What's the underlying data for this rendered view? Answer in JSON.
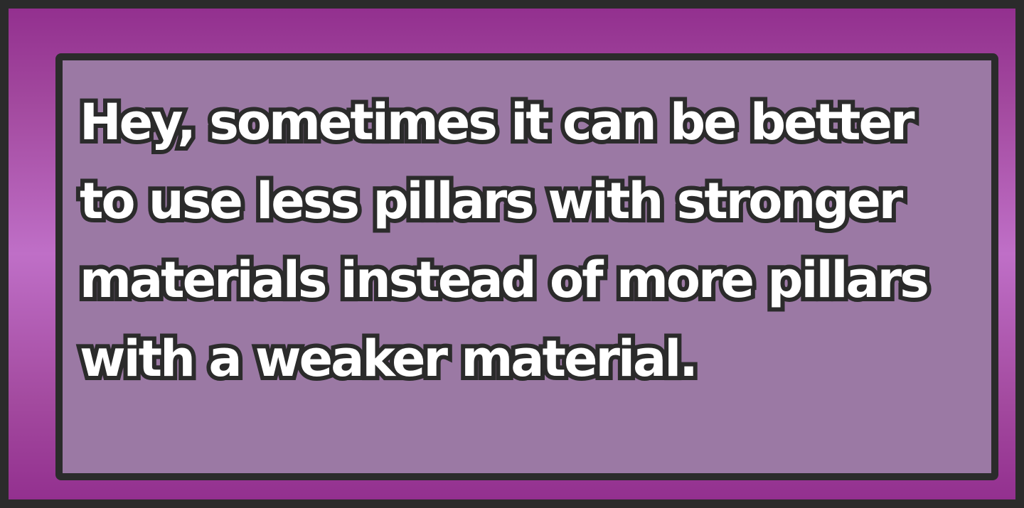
{
  "dialog": {
    "text": "Hey, sometimes it can be better to use less pillars with stronger materials instead of more pillars with a weaker material."
  },
  "colors": {
    "outer_frame": "#2b2b2b",
    "background_purple": "#a34a9f",
    "panel": "#9b79a4",
    "text_fill": "#ffffff",
    "text_outline": "#2b2b2b"
  }
}
